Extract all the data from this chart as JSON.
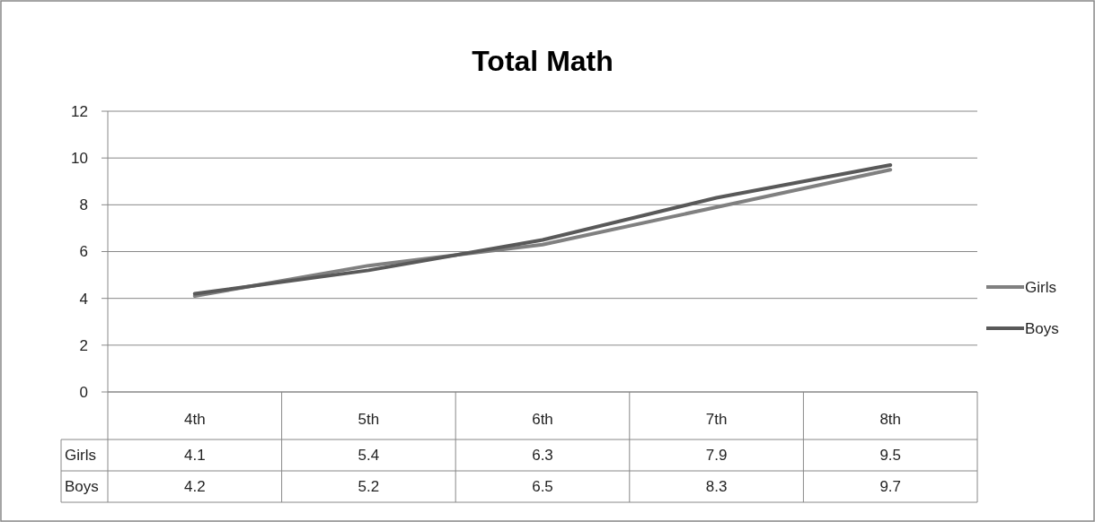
{
  "chart_data": {
    "type": "line",
    "title": "Total Math",
    "categories": [
      "4th",
      "5th",
      "6th",
      "7th",
      "8th"
    ],
    "series": [
      {
        "name": "Girls",
        "color": "#808080",
        "values": [
          4.1,
          5.4,
          6.3,
          7.9,
          9.5
        ]
      },
      {
        "name": "Boys",
        "color": "#595959",
        "values": [
          4.2,
          5.2,
          6.5,
          8.3,
          9.7
        ]
      }
    ],
    "ylim": [
      0,
      12
    ],
    "yticks": [
      0,
      2,
      4,
      6,
      8,
      10,
      12
    ],
    "grid": "y",
    "legend": "right",
    "data_labels": true,
    "marker": "none",
    "line_style": "solid"
  }
}
